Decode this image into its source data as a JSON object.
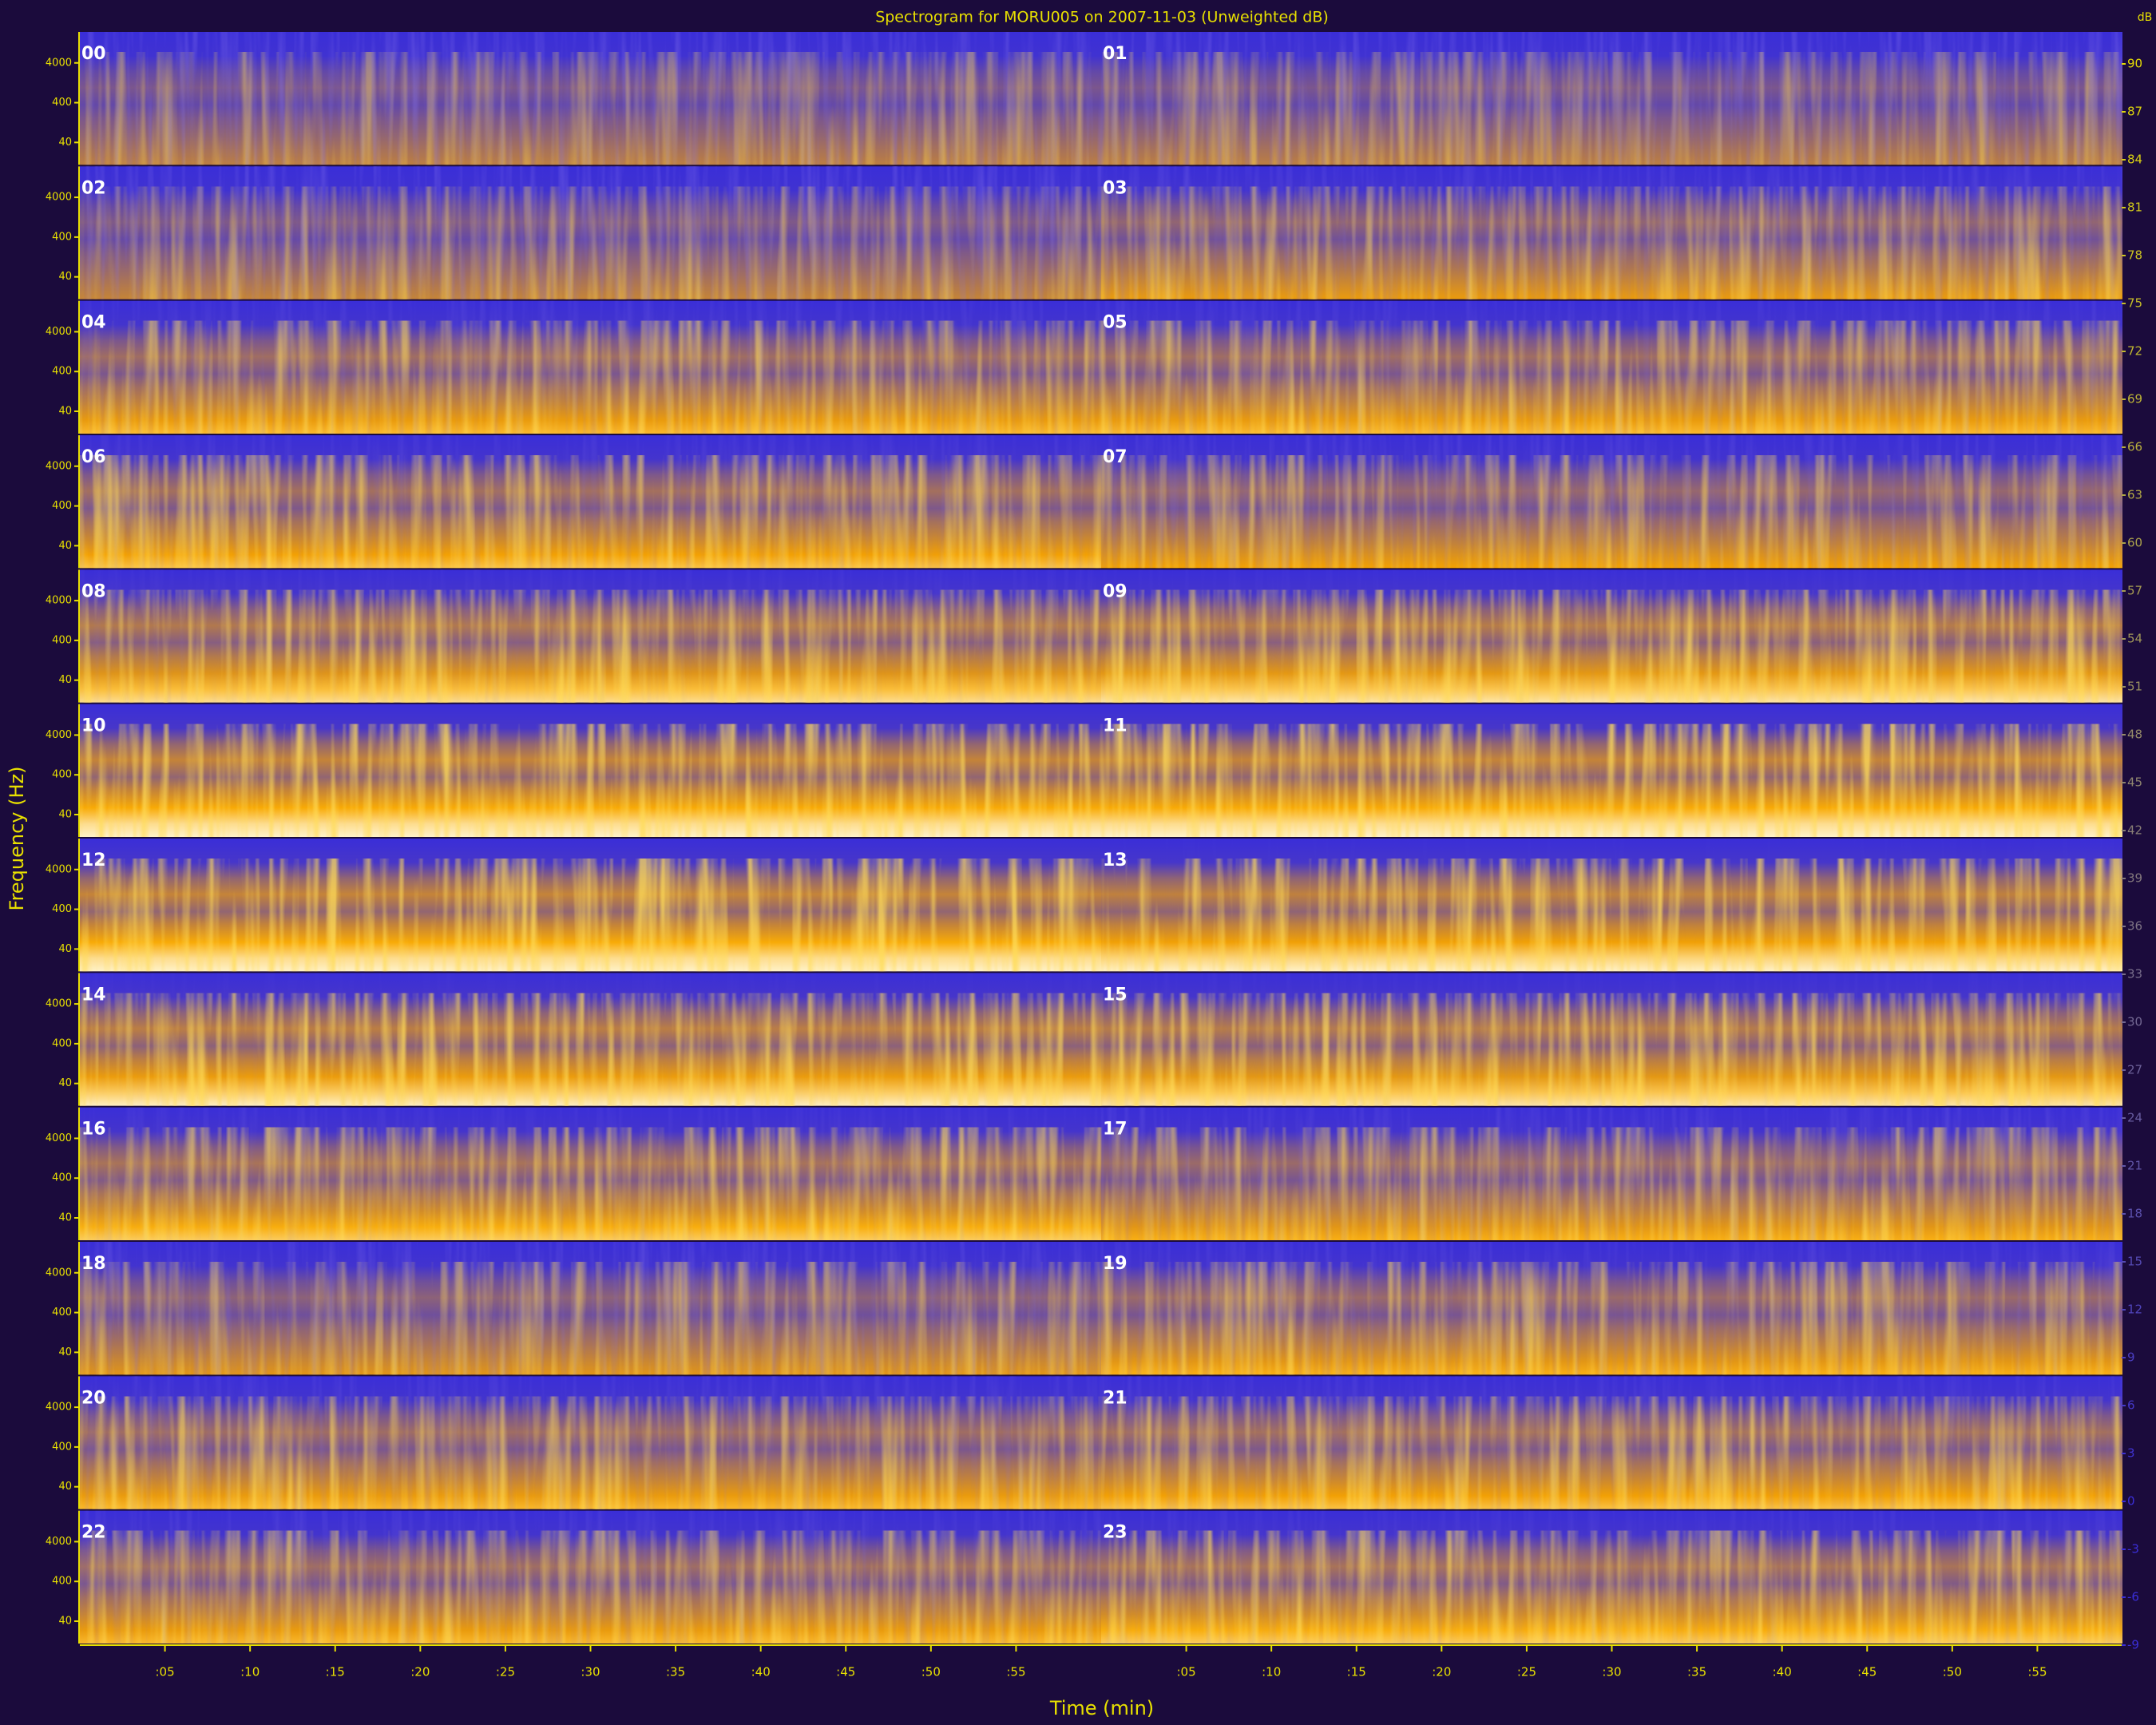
{
  "chart_data": {
    "type": "spectrogram",
    "title": "Spectrogram for MORU005 on 2007-11-03 (Unweighted dB)",
    "xlabel": "Time (min)",
    "ylabel": "Frequency (Hz)",
    "rows": [
      {
        "hours": [
          "00",
          "01"
        ]
      },
      {
        "hours": [
          "02",
          "03"
        ]
      },
      {
        "hours": [
          "04",
          "05"
        ]
      },
      {
        "hours": [
          "06",
          "07"
        ]
      },
      {
        "hours": [
          "08",
          "09"
        ]
      },
      {
        "hours": [
          "10",
          "11"
        ]
      },
      {
        "hours": [
          "12",
          "13"
        ]
      },
      {
        "hours": [
          "14",
          "15"
        ]
      },
      {
        "hours": [
          "16",
          "17"
        ]
      },
      {
        "hours": [
          "18",
          "19"
        ]
      },
      {
        "hours": [
          "20",
          "21"
        ]
      },
      {
        "hours": [
          "22",
          "23"
        ]
      }
    ],
    "xlim": [
      0,
      60
    ],
    "xticks": [
      {
        "value": 5,
        "label": ":05"
      },
      {
        "value": 10,
        "label": ":10"
      },
      {
        "value": 15,
        "label": ":15"
      },
      {
        "value": 20,
        "label": ":20"
      },
      {
        "value": 25,
        "label": ":25"
      },
      {
        "value": 30,
        "label": ":30"
      },
      {
        "value": 35,
        "label": ":35"
      },
      {
        "value": 40,
        "label": ":40"
      },
      {
        "value": 45,
        "label": ":45"
      },
      {
        "value": 50,
        "label": ":50"
      },
      {
        "value": 55,
        "label": ":55"
      }
    ],
    "ylim": [
      10,
      24000
    ],
    "yscale": "log",
    "yticks": [
      40,
      400,
      4000
    ],
    "colorbar": {
      "label": "dB",
      "lim": [
        -9,
        92
      ],
      "ticks": [
        90,
        87,
        84,
        81,
        78,
        75,
        72,
        69,
        66,
        63,
        60,
        57,
        54,
        51,
        48,
        45,
        42,
        39,
        36,
        33,
        30,
        27,
        24,
        21,
        18,
        15,
        12,
        9,
        6,
        3,
        0,
        -3,
        -6,
        -9
      ]
    },
    "text_color": "#e8e000",
    "hour_label_color": "#ffffff"
  }
}
